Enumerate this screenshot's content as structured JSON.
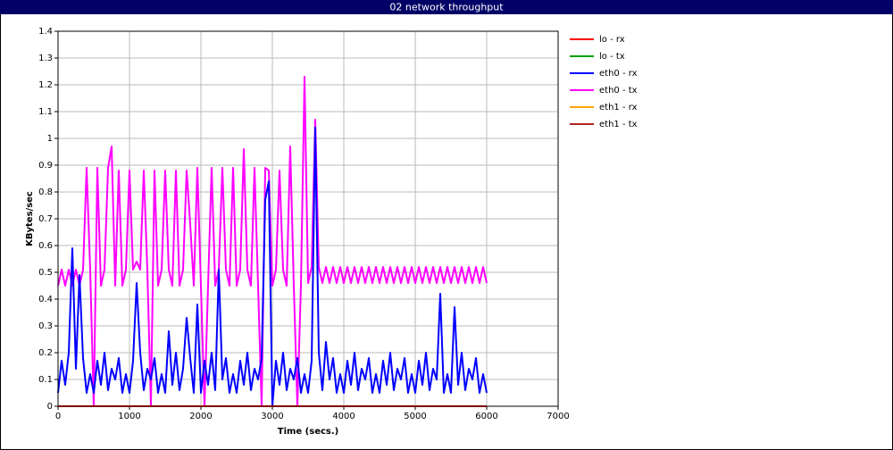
{
  "chart_data": {
    "type": "line",
    "title": "02 network throughput",
    "xlabel": "Time (secs.)",
    "ylabel": "KBytes/sec",
    "xlim": [
      0,
      7000
    ],
    "ylim": [
      0,
      1.4
    ],
    "xticks": [
      0,
      1000,
      2000,
      3000,
      4000,
      5000,
      6000,
      7000
    ],
    "yticks": [
      0,
      0.1,
      0.2,
      0.3,
      0.4,
      0.5,
      0.6,
      0.7,
      0.8,
      0.9,
      1,
      1.1,
      1.2,
      1.3,
      1.4
    ],
    "grid": true,
    "legend": "right",
    "x": [
      0,
      50,
      100,
      150,
      200,
      250,
      300,
      350,
      400,
      450,
      500,
      550,
      600,
      650,
      700,
      750,
      800,
      850,
      900,
      950,
      1000,
      1050,
      1100,
      1150,
      1200,
      1250,
      1300,
      1350,
      1400,
      1450,
      1500,
      1550,
      1600,
      1650,
      1700,
      1750,
      1800,
      1850,
      1900,
      1950,
      2000,
      2050,
      2100,
      2150,
      2200,
      2250,
      2300,
      2350,
      2400,
      2450,
      2500,
      2550,
      2600,
      2650,
      2700,
      2750,
      2800,
      2850,
      2900,
      2950,
      3000,
      3050,
      3100,
      3150,
      3200,
      3250,
      3300,
      3350,
      3400,
      3450,
      3500,
      3550,
      3600,
      3650,
      3700,
      3750,
      3800,
      3850,
      3900,
      3950,
      4000,
      4050,
      4100,
      4150,
      4200,
      4250,
      4300,
      4350,
      4400,
      4450,
      4500,
      4550,
      4600,
      4650,
      4700,
      4750,
      4800,
      4850,
      4900,
      4950,
      5000,
      5050,
      5100,
      5150,
      5200,
      5250,
      5300,
      5350,
      5400,
      5450,
      5500,
      5550,
      5600,
      5650,
      5700,
      5750,
      5800,
      5850,
      5900,
      5950,
      6000
    ],
    "series": [
      {
        "name": "lo - rx",
        "color": "#ff0000",
        "x": [
          0,
          6000
        ],
        "values": [
          0,
          0
        ]
      },
      {
        "name": "lo - tx",
        "color": "#00a000",
        "x": [
          0,
          6000
        ],
        "values": [
          0,
          0
        ]
      },
      {
        "name": "eth0 - rx",
        "color": "#0000ff",
        "values": [
          0.05,
          0.17,
          0.08,
          0.2,
          0.59,
          0.14,
          0.49,
          0.18,
          0.05,
          0.12,
          0.05,
          0.17,
          0.08,
          0.2,
          0.06,
          0.14,
          0.1,
          0.18,
          0.05,
          0.12,
          0.05,
          0.17,
          0.46,
          0.2,
          0.06,
          0.14,
          0.1,
          0.18,
          0.05,
          0.12,
          0.05,
          0.28,
          0.08,
          0.2,
          0.06,
          0.14,
          0.33,
          0.18,
          0.05,
          0.38,
          0.05,
          0.17,
          0.08,
          0.2,
          0.06,
          0.51,
          0.1,
          0.18,
          0.05,
          0.12,
          0.05,
          0.17,
          0.08,
          0.2,
          0.06,
          0.14,
          0.1,
          0.18,
          0.77,
          0.84,
          0,
          0.17,
          0.08,
          0.2,
          0.06,
          0.14,
          0.1,
          0.18,
          0.05,
          0.12,
          0.05,
          0.17,
          1.04,
          0.2,
          0.06,
          0.24,
          0.1,
          0.18,
          0.05,
          0.12,
          0.05,
          0.17,
          0.08,
          0.2,
          0.06,
          0.14,
          0.1,
          0.18,
          0.05,
          0.12,
          0.05,
          0.17,
          0.08,
          0.2,
          0.06,
          0.14,
          0.1,
          0.18,
          0.05,
          0.12,
          0.05,
          0.17,
          0.08,
          0.2,
          0.06,
          0.14,
          0.1,
          0.42,
          0.05,
          0.12,
          0.05,
          0.37,
          0.08,
          0.2,
          0.06,
          0.14,
          0.1,
          0.18,
          0.05,
          0.12,
          0.05
        ]
      },
      {
        "name": "eth0 - tx",
        "color": "#ff00ff",
        "values": [
          0.45,
          0.51,
          0.45,
          0.51,
          0.45,
          0.51,
          0.45,
          0.51,
          0.89,
          0.51,
          0,
          0.89,
          0.45,
          0.51,
          0.89,
          0.97,
          0.45,
          0.88,
          0.45,
          0.51,
          0.88,
          0.51,
          0.54,
          0.51,
          0.88,
          0.51,
          0,
          0.88,
          0.45,
          0.51,
          0.88,
          0.51,
          0.45,
          0.88,
          0.45,
          0.51,
          0.88,
          0.68,
          0.45,
          0.89,
          0.45,
          0,
          0.45,
          0.89,
          0.45,
          0.51,
          0.89,
          0.51,
          0.45,
          0.89,
          0.45,
          0.51,
          0.96,
          0.51,
          0.45,
          0.89,
          0.45,
          0,
          0.89,
          0.88,
          0.45,
          0.51,
          0.88,
          0.51,
          0.45,
          0.97,
          0.45,
          0,
          0.45,
          1.23,
          0.46,
          0.52,
          1.07,
          0.52,
          0.46,
          0.52,
          0.46,
          0.52,
          0.46,
          0.52,
          0.46,
          0.52,
          0.46,
          0.52,
          0.46,
          0.52,
          0.46,
          0.52,
          0.46,
          0.52,
          0.46,
          0.52,
          0.46,
          0.52,
          0.46,
          0.52,
          0.46,
          0.52,
          0.46,
          0.52,
          0.46,
          0.52,
          0.46,
          0.52,
          0.46,
          0.52,
          0.46,
          0.52,
          0.46,
          0.52,
          0.46,
          0.52,
          0.46,
          0.52,
          0.46,
          0.52,
          0.46,
          0.52,
          0.46,
          0.52,
          0.46
        ]
      },
      {
        "name": "eth1 - rx",
        "color": "#ffa500",
        "x": [
          0,
          6000
        ],
        "values": [
          0,
          0
        ]
      },
      {
        "name": "eth1 - tx",
        "color": "#b22222",
        "x": [
          0,
          6000
        ],
        "values": [
          0,
          0
        ]
      }
    ]
  }
}
